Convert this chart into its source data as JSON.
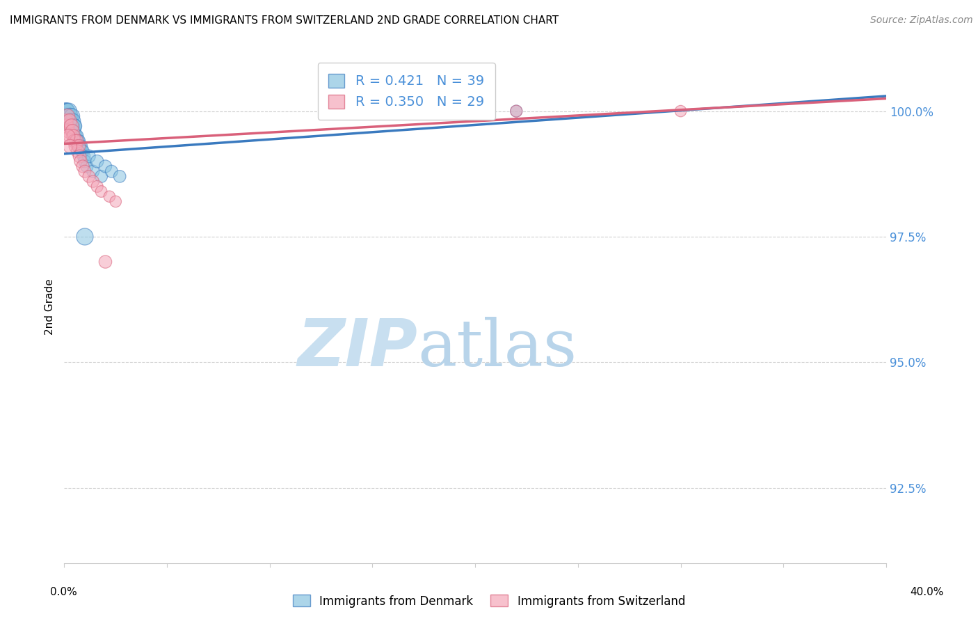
{
  "title": "IMMIGRANTS FROM DENMARK VS IMMIGRANTS FROM SWITZERLAND 2ND GRADE CORRELATION CHART",
  "source": "Source: ZipAtlas.com",
  "ylabel": "2nd Grade",
  "xlim": [
    0.0,
    40.0
  ],
  "ylim": [
    91.0,
    101.2
  ],
  "yticks": [
    92.5,
    95.0,
    97.5,
    100.0
  ],
  "ytick_labels": [
    "92.5%",
    "95.0%",
    "97.5%",
    "100.0%"
  ],
  "legend_r_denmark": "R = 0.421",
  "legend_n_denmark": "N = 39",
  "legend_r_switzerland": "R = 0.350",
  "legend_n_switzerland": "N = 29",
  "color_denmark": "#89c4e1",
  "color_switzerland": "#f4a7b9",
  "color_trendline_denmark": "#3a7abf",
  "color_trendline_switzerland": "#d9607a",
  "color_right_axis": "#4a90d9",
  "watermark_zip": "ZIP",
  "watermark_atlas": "atlas",
  "watermark_color_zip": "#c8dff0",
  "watermark_color_atlas": "#b8d4ea",
  "denmark_x": [
    0.05,
    0.08,
    0.1,
    0.12,
    0.15,
    0.18,
    0.2,
    0.22,
    0.25,
    0.28,
    0.3,
    0.32,
    0.35,
    0.38,
    0.4,
    0.42,
    0.45,
    0.48,
    0.5,
    0.55,
    0.6,
    0.65,
    0.7,
    0.75,
    0.8,
    0.85,
    0.9,
    0.95,
    1.0,
    1.1,
    1.2,
    1.4,
    1.6,
    1.8,
    2.0,
    2.3,
    2.7,
    1.0,
    22.0
  ],
  "denmark_y": [
    99.9,
    100.0,
    100.0,
    99.9,
    100.0,
    99.8,
    99.9,
    100.0,
    99.8,
    99.9,
    99.8,
    99.7,
    99.8,
    99.9,
    99.7,
    99.8,
    99.6,
    99.7,
    99.7,
    99.5,
    99.5,
    99.4,
    99.4,
    99.3,
    99.3,
    99.2,
    99.2,
    99.1,
    99.0,
    98.9,
    99.1,
    98.8,
    99.0,
    98.7,
    98.9,
    98.8,
    98.7,
    97.5,
    100.0
  ],
  "switzerland_x": [
    0.08,
    0.12,
    0.15,
    0.2,
    0.25,
    0.3,
    0.35,
    0.4,
    0.45,
    0.5,
    0.55,
    0.6,
    0.65,
    0.7,
    0.75,
    0.8,
    0.9,
    1.0,
    1.2,
    1.4,
    1.6,
    1.8,
    2.2,
    2.5,
    2.0,
    0.18,
    0.28,
    22.0,
    30.0
  ],
  "switzerland_y": [
    99.8,
    99.7,
    99.9,
    99.6,
    99.8,
    99.5,
    99.7,
    99.6,
    99.5,
    99.4,
    99.3,
    99.4,
    99.2,
    99.3,
    99.1,
    99.0,
    98.9,
    98.8,
    98.7,
    98.6,
    98.5,
    98.4,
    98.3,
    98.2,
    97.0,
    99.5,
    99.3,
    100.0,
    100.0
  ],
  "denmark_sizes": [
    60,
    60,
    55,
    55,
    50,
    55,
    50,
    55,
    50,
    55,
    50,
    45,
    50,
    50,
    45,
    50,
    45,
    45,
    45,
    40,
    40,
    40,
    38,
    38,
    38,
    36,
    36,
    35,
    35,
    34,
    36,
    33,
    35,
    33,
    34,
    33,
    32,
    60,
    30
  ],
  "switzerland_sizes": [
    45,
    42,
    45,
    40,
    45,
    42,
    45,
    40,
    38,
    40,
    38,
    40,
    36,
    38,
    36,
    35,
    34,
    33,
    32,
    31,
    30,
    29,
    28,
    28,
    35,
    42,
    40,
    30,
    28
  ],
  "trendline_dk_x0": 0.0,
  "trendline_dk_x1": 40.0,
  "trendline_dk_y0": 99.15,
  "trendline_dk_y1": 100.3,
  "trendline_ch_x0": 0.0,
  "trendline_ch_x1": 40.0,
  "trendline_ch_y0": 99.35,
  "trendline_ch_y1": 100.25
}
